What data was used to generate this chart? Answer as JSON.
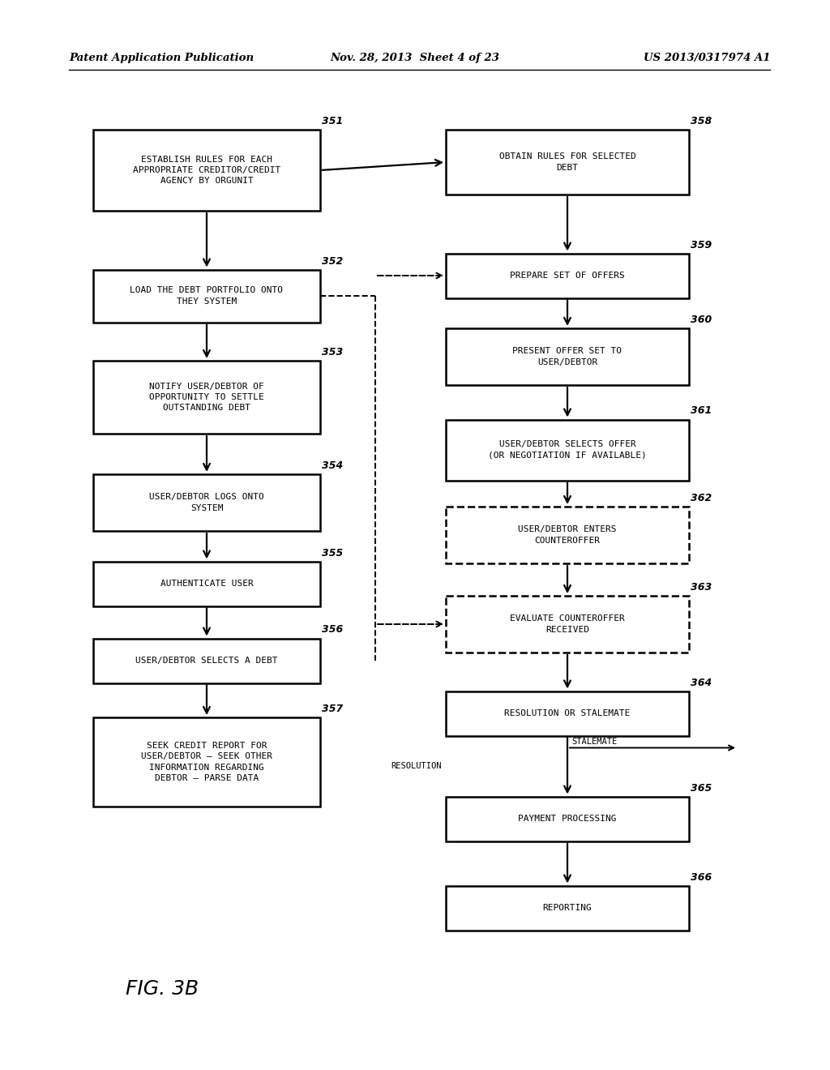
{
  "bg_color": "#ffffff",
  "header_left": "Patent Application Publication",
  "header_center": "Nov. 28, 2013  Sheet 4 of 23",
  "header_right": "US 2013/0317974 A1",
  "figure_label": "FIG. 3B",
  "left_boxes": [
    {
      "label": "ESTABLISH RULES FOR EACH\nAPPROPRIATE CREDITOR/CREDIT\nAGENCY BY ORGUNIT",
      "num": "351",
      "style": "solid"
    },
    {
      "label": "LOAD THE DEBT PORTFOLIO ONTO\nTHEY SYSTEM",
      "num": "352",
      "style": "solid"
    },
    {
      "label": "NOTIFY USER/DEBTOR OF\nOPPORTUNITY TO SETTLE\nOUTSTANDING DEBT",
      "num": "353",
      "style": "solid"
    },
    {
      "label": "USER/DEBTOR LOGS ONTO\nSYSTEM",
      "num": "354",
      "style": "solid"
    },
    {
      "label": "AUTHENTICATE USER",
      "num": "355",
      "style": "solid"
    },
    {
      "label": "USER/DEBTOR SELECTS A DEBT",
      "num": "356",
      "style": "solid"
    },
    {
      "label": "SEEK CREDIT REPORT FOR\nUSER/DEBTOR – SEEK OTHER\nINFORMATION REGARDING\nDEBTOR – PARSE DATA",
      "num": "357",
      "style": "solid"
    }
  ],
  "right_boxes": [
    {
      "label": "OBTAIN RULES FOR SELECTED\nDEBT",
      "num": "358",
      "style": "solid"
    },
    {
      "label": "PREPARE SET OF OFFERS",
      "num": "359",
      "style": "solid"
    },
    {
      "label": "PRESENT OFFER SET TO\nUSER/DEBTOR",
      "num": "360",
      "style": "solid"
    },
    {
      "label": "USER/DEBTOR SELECTS OFFER\n(OR NEGOTIATION IF AVAILABLE)",
      "num": "361",
      "style": "solid"
    },
    {
      "label": "USER/DEBTOR ENTERS\nCOUNTEROFFER",
      "num": "362",
      "style": "dashed"
    },
    {
      "label": "EVALUATE COUNTEROFFER\nRECEIVED",
      "num": "363",
      "style": "dashed"
    },
    {
      "label": "RESOLUTION OR STALEMATE",
      "num": "364",
      "style": "solid"
    },
    {
      "label": "PAYMENT PROCESSING",
      "num": "365",
      "style": "solid"
    },
    {
      "label": "REPORTING",
      "num": "366",
      "style": "solid"
    }
  ],
  "stalemate_label": "STALEMATE",
  "resolution_label": "RESOLUTION"
}
